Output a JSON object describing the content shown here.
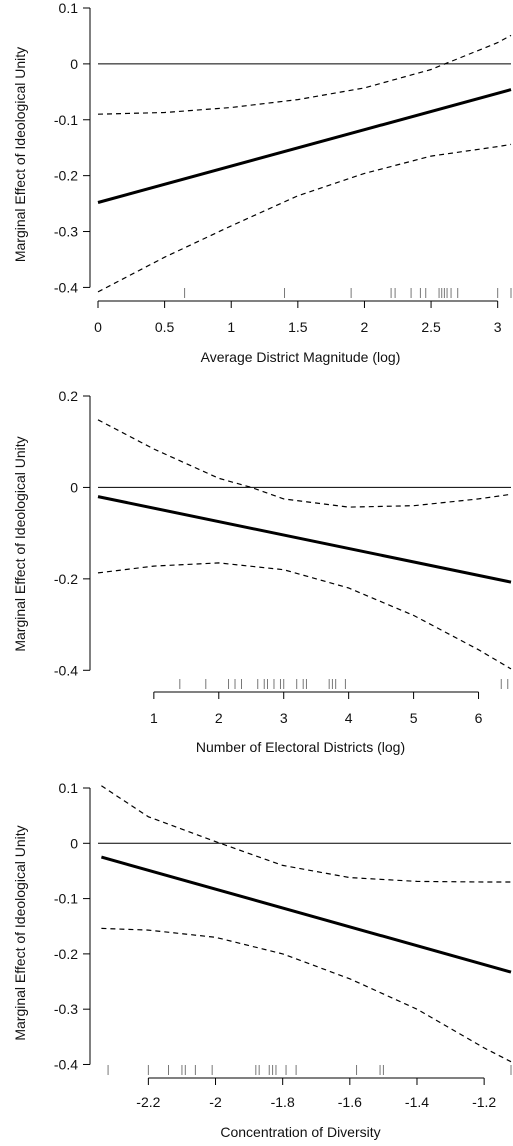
{
  "chart_data": [
    {
      "type": "line",
      "title": "",
      "xlabel": "Average District Magnitude (log)",
      "ylabel": "Marginal Effect of Ideological Unity",
      "xlim": [
        0,
        3.1
      ],
      "ylim": [
        -0.41,
        0.1
      ],
      "xticks": [
        0,
        0.5,
        1,
        1.5,
        2,
        2.5,
        3
      ],
      "xtick_labels": [
        "0",
        "0.5",
        "1",
        "1.5",
        "2",
        "2.5",
        "3"
      ],
      "yticks": [
        0.1,
        0,
        -0.1,
        -0.2,
        -0.3,
        -0.4
      ],
      "ytick_labels": [
        "0.1",
        "0",
        "-0.1",
        "-0.2",
        "-0.3",
        "-0.4"
      ],
      "reference_line": 0,
      "series": [
        {
          "style": "solid-thick",
          "x": [
            0,
            3.1
          ],
          "y": [
            -0.248,
            -0.046
          ]
        },
        {
          "style": "dashed",
          "x": [
            0,
            0.5,
            1,
            1.5,
            2,
            2.5,
            3,
            3.1
          ],
          "y": [
            -0.09,
            -0.087,
            -0.078,
            -0.064,
            -0.043,
            -0.01,
            0.038,
            0.051
          ]
        },
        {
          "style": "dashed",
          "x": [
            0,
            0.5,
            1,
            1.5,
            2,
            2.5,
            3,
            3.1
          ],
          "y": [
            -0.408,
            -0.346,
            -0.29,
            -0.236,
            -0.196,
            -0.165,
            -0.148,
            -0.144
          ]
        }
      ],
      "rug": [
        0.65,
        1.4,
        1.9,
        2.2,
        2.23,
        2.35,
        2.42,
        2.46,
        2.56,
        2.58,
        2.6,
        2.62,
        2.65,
        2.7,
        3.0,
        3.1
      ]
    },
    {
      "type": "line",
      "title": "",
      "xlabel": "Number of Electoral Districts (log)",
      "ylabel": "Marginal Effect of Ideological Unity",
      "xlim": [
        0.14,
        6.5
      ],
      "ylim": [
        -0.43,
        0.2
      ],
      "xticks": [
        1,
        2,
        3,
        4,
        5,
        6
      ],
      "xtick_labels": [
        "1",
        "2",
        "3",
        "4",
        "5",
        "6"
      ],
      "yticks": [
        0.2,
        0,
        -0.2,
        -0.4
      ],
      "ytick_labels": [
        "0.2",
        "0",
        "-0.2",
        "-0.4"
      ],
      "reference_line": 0,
      "series": [
        {
          "style": "solid-thick",
          "x": [
            0.14,
            6.5
          ],
          "y": [
            -0.02,
            -0.207
          ]
        },
        {
          "style": "dashed",
          "x": [
            0.14,
            1,
            2,
            2.5,
            3,
            4,
            5,
            6,
            6.5
          ],
          "y": [
            0.148,
            0.084,
            0.02,
            0.0,
            -0.025,
            -0.043,
            -0.04,
            -0.025,
            -0.015
          ]
        },
        {
          "style": "dashed",
          "x": [
            0.14,
            1,
            2,
            3,
            4,
            5,
            6,
            6.5
          ],
          "y": [
            -0.187,
            -0.172,
            -0.165,
            -0.18,
            -0.22,
            -0.28,
            -0.355,
            -0.397
          ]
        }
      ],
      "rug": [
        1.4,
        1.8,
        2.15,
        2.25,
        2.35,
        2.6,
        2.7,
        2.75,
        2.85,
        2.95,
        3.0,
        3.2,
        3.3,
        3.35,
        3.7,
        3.75,
        3.8,
        3.95,
        6.35,
        6.45
      ]
    },
    {
      "type": "line",
      "title": "",
      "xlabel": "Concentration of Diversity",
      "ylabel": "Marginal Effect of Ideological Unity",
      "xlim": [
        -2.35,
        -1.12
      ],
      "ylim": [
        -0.41,
        0.1
      ],
      "xticks": [
        -2.2,
        -2,
        -1.8,
        -1.6,
        -1.4,
        -1.2
      ],
      "xtick_labels": [
        "-2.2",
        "-2",
        "-1.8",
        "-1.6",
        "-1.4",
        "-1.2"
      ],
      "yticks": [
        0.1,
        0,
        -0.1,
        -0.2,
        -0.3,
        -0.4
      ],
      "ytick_labels": [
        "0.1",
        "0",
        "-0.1",
        "-0.2",
        "-0.3",
        "-0.4"
      ],
      "reference_line": 0,
      "series": [
        {
          "style": "solid-thick",
          "x": [
            -2.34,
            -1.12
          ],
          "y": [
            -0.025,
            -0.233
          ]
        },
        {
          "style": "dashed",
          "x": [
            -2.34,
            -2.2,
            -2.0,
            -1.8,
            -1.6,
            -1.4,
            -1.2,
            -1.12
          ],
          "y": [
            0.104,
            0.048,
            0.003,
            -0.04,
            -0.062,
            -0.069,
            -0.07,
            -0.07
          ]
        },
        {
          "style": "dashed",
          "x": [
            -2.34,
            -2.2,
            -2.0,
            -1.8,
            -1.6,
            -1.4,
            -1.2,
            -1.12
          ],
          "y": [
            -0.154,
            -0.157,
            -0.17,
            -0.2,
            -0.245,
            -0.3,
            -0.37,
            -0.395
          ]
        }
      ],
      "rug": [
        -2.32,
        -2.2,
        -2.14,
        -2.1,
        -2.09,
        -2.06,
        -2.01,
        -1.88,
        -1.87,
        -1.84,
        -1.83,
        -1.82,
        -1.79,
        -1.76,
        -1.58,
        -1.51,
        -1.5,
        -1.12
      ]
    }
  ]
}
